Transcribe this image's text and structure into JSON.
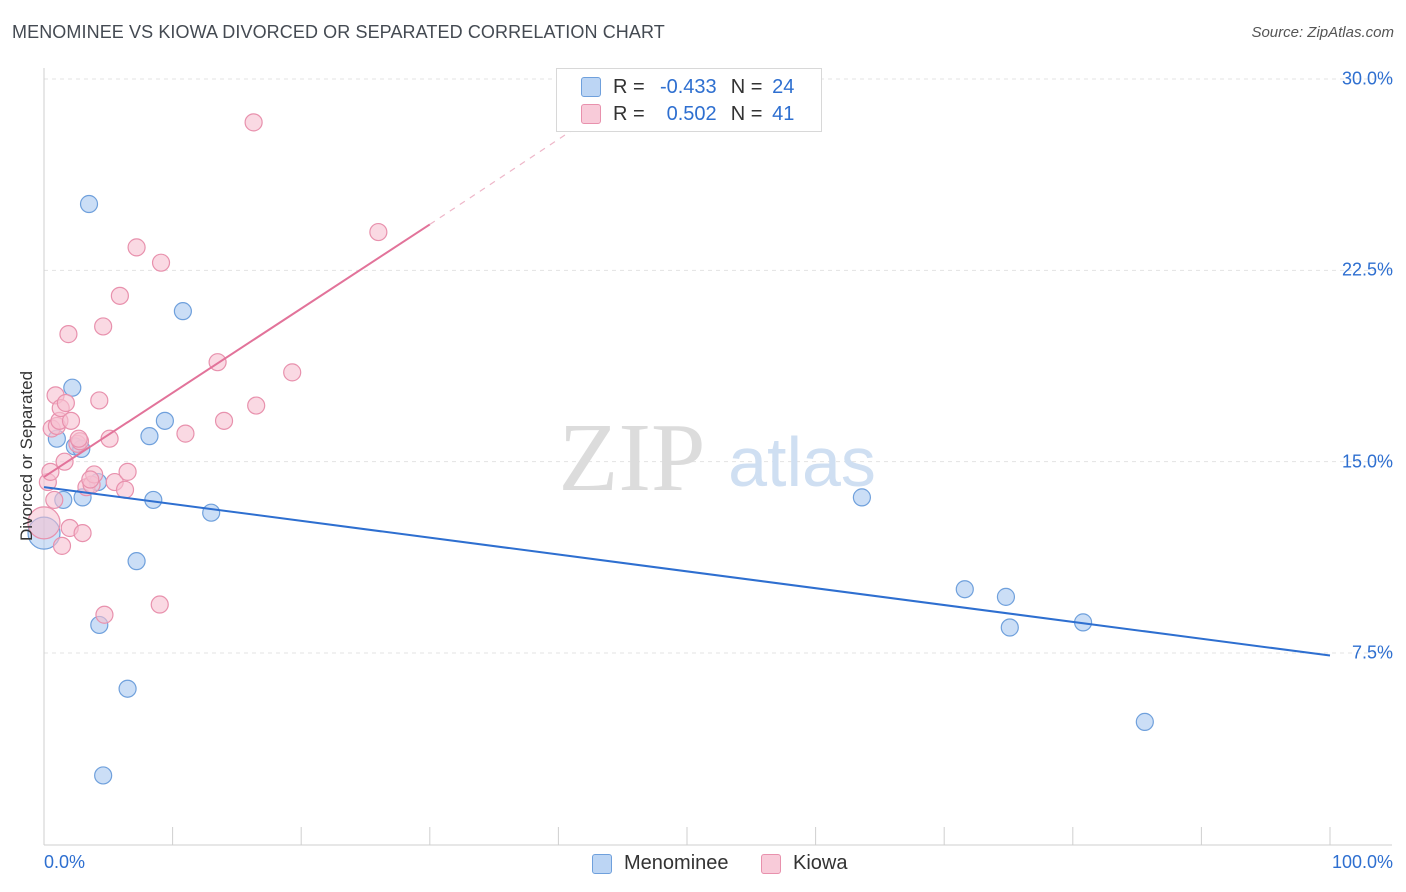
{
  "title": "MENOMINEE VS KIOWA DIVORCED OR SEPARATED CORRELATION CHART",
  "source": "Source: ZipAtlas.com",
  "watermark": {
    "zip": "ZIP",
    "atlas": "atlas"
  },
  "legend": {
    "rows": [
      {
        "r_label": "R =",
        "r_value": "-0.433",
        "n_label": "N =",
        "n_value": "24"
      },
      {
        "r_label": "R =",
        "r_value": "0.502",
        "n_label": "N =",
        "n_value": "41"
      }
    ]
  },
  "chart_data": {
    "type": "scatter",
    "title": "MENOMINEE VS KIOWA DIVORCED OR SEPARATED CORRELATION CHART",
    "xlabel": "",
    "ylabel": "Divorced or Separated",
    "xlim": [
      0,
      100
    ],
    "ylim": [
      0,
      31
    ],
    "x_tick_labels": [
      "0.0%",
      "100.0%"
    ],
    "y_ticks": [
      7.5,
      15.0,
      22.5,
      30.0
    ],
    "y_tick_labels": [
      "7.5%",
      "15.0%",
      "22.5%",
      "30.0%"
    ],
    "legend_position": "bottom-center",
    "colors": {
      "menominee_fill": "#a9c8f0",
      "menominee_stroke": "#6fa0dc",
      "menominee_line": "#2e6fd0",
      "kiowa_fill": "#f6bfd0",
      "kiowa_stroke": "#e891ad",
      "kiowa_line": "#e2739a"
    },
    "series": [
      {
        "name": "Menominee",
        "r": -0.433,
        "n": 24,
        "trend": {
          "x0": 0,
          "y0": 14.0,
          "x1": 100,
          "y1": 7.4,
          "dashed_to": null
        },
        "points": [
          {
            "x": 0.0,
            "y": 12.2,
            "big": true
          },
          {
            "x": 1.0,
            "y": 15.9
          },
          {
            "x": 1.5,
            "y": 13.5
          },
          {
            "x": 2.2,
            "y": 17.9
          },
          {
            "x": 2.4,
            "y": 15.6
          },
          {
            "x": 3.5,
            "y": 25.1
          },
          {
            "x": 3.0,
            "y": 13.6
          },
          {
            "x": 4.2,
            "y": 14.2
          },
          {
            "x": 4.3,
            "y": 8.6
          },
          {
            "x": 6.5,
            "y": 6.1
          },
          {
            "x": 4.6,
            "y": 2.7
          },
          {
            "x": 7.2,
            "y": 11.1
          },
          {
            "x": 8.2,
            "y": 16.0
          },
          {
            "x": 8.5,
            "y": 13.5
          },
          {
            "x": 9.4,
            "y": 16.6
          },
          {
            "x": 10.8,
            "y": 20.9
          },
          {
            "x": 13.0,
            "y": 13.0
          },
          {
            "x": 63.6,
            "y": 13.6
          },
          {
            "x": 71.6,
            "y": 10.0
          },
          {
            "x": 75.1,
            "y": 8.5
          },
          {
            "x": 74.8,
            "y": 9.7
          },
          {
            "x": 80.8,
            "y": 8.7
          },
          {
            "x": 85.6,
            "y": 4.8
          },
          {
            "x": 2.9,
            "y": 15.5
          }
        ]
      },
      {
        "name": "Kiowa",
        "r": 0.502,
        "n": 41,
        "trend": {
          "x0": 0,
          "y0": 14.4,
          "x1": 30,
          "y1": 24.3,
          "dash_x1": 45,
          "dash_y1": 29.3
        },
        "points": [
          {
            "x": 0.0,
            "y": 12.6,
            "big": true
          },
          {
            "x": 0.3,
            "y": 14.2
          },
          {
            "x": 0.5,
            "y": 14.6
          },
          {
            "x": 0.6,
            "y": 16.3
          },
          {
            "x": 0.8,
            "y": 13.5
          },
          {
            "x": 0.9,
            "y": 17.6
          },
          {
            "x": 1.0,
            "y": 16.4
          },
          {
            "x": 1.2,
            "y": 16.6
          },
          {
            "x": 1.3,
            "y": 17.1
          },
          {
            "x": 1.4,
            "y": 11.7
          },
          {
            "x": 1.6,
            "y": 15.0
          },
          {
            "x": 1.7,
            "y": 17.3
          },
          {
            "x": 1.9,
            "y": 20.0
          },
          {
            "x": 2.0,
            "y": 12.4
          },
          {
            "x": 2.1,
            "y": 16.6
          },
          {
            "x": 2.6,
            "y": 15.7
          },
          {
            "x": 2.8,
            "y": 15.8
          },
          {
            "x": 3.0,
            "y": 12.2
          },
          {
            "x": 3.3,
            "y": 14.0
          },
          {
            "x": 3.7,
            "y": 14.1
          },
          {
            "x": 3.9,
            "y": 14.5
          },
          {
            "x": 4.3,
            "y": 17.4
          },
          {
            "x": 4.7,
            "y": 9.0
          },
          {
            "x": 4.6,
            "y": 20.3
          },
          {
            "x": 5.1,
            "y": 15.9
          },
          {
            "x": 5.5,
            "y": 14.2
          },
          {
            "x": 5.9,
            "y": 21.5
          },
          {
            "x": 6.3,
            "y": 13.9
          },
          {
            "x": 6.5,
            "y": 14.6
          },
          {
            "x": 7.2,
            "y": 23.4
          },
          {
            "x": 9.0,
            "y": 9.4
          },
          {
            "x": 9.1,
            "y": 22.8
          },
          {
            "x": 11.0,
            "y": 16.1
          },
          {
            "x": 13.5,
            "y": 18.9
          },
          {
            "x": 14.0,
            "y": 16.6
          },
          {
            "x": 16.3,
            "y": 28.3
          },
          {
            "x": 16.5,
            "y": 17.2
          },
          {
            "x": 19.3,
            "y": 18.5
          },
          {
            "x": 26.0,
            "y": 24.0
          },
          {
            "x": 2.7,
            "y": 15.9
          },
          {
            "x": 3.6,
            "y": 14.3
          }
        ]
      }
    ]
  },
  "bottom_legend": {
    "items": [
      "Menominee",
      "Kiowa"
    ]
  }
}
